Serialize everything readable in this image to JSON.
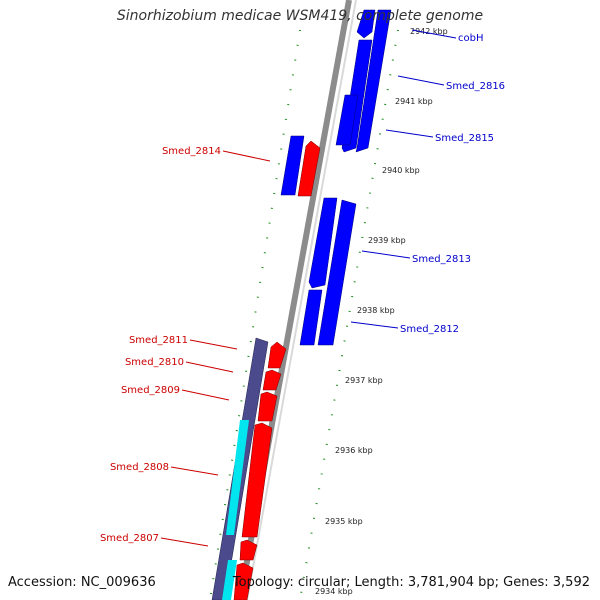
{
  "title": "Sinorhizobium medicae WSM419, complete genome",
  "footer": {
    "accession": "Accession: NC_009636",
    "summary": "Topology: circular; Length: 3,781,904 bp; Genes: 3,592"
  },
  "colors": {
    "forward_gene": "#0000ff",
    "reverse_gene": "#ff0000",
    "cds_reverse": "#4a4a8c",
    "rna_like": "#00e5ee",
    "label_forward": "#0000cc",
    "label_reverse": "#cc0000",
    "backbone": "#9a9a9a",
    "tick_dot": "#1e8c1e"
  },
  "ticks": [
    "2942 kbp",
    "2941 kbp",
    "2940 kbp",
    "2939 kbp",
    "2938 kbp",
    "2937 kbp",
    "2936 kbp",
    "2935 kbp",
    "2934 kbp"
  ],
  "gene_labels": {
    "cobH": "cobH",
    "smed_2816": "Smed_2816",
    "smed_2815": "Smed_2815",
    "smed_2814": "Smed_2814",
    "smed_2813": "Smed_2813",
    "smed_2812": "Smed_2812",
    "smed_2811": "Smed_2811",
    "smed_2810": "Smed_2810",
    "smed_2809": "Smed_2809",
    "smed_2808": "Smed_2808",
    "smed_2807": "Smed_2807"
  }
}
